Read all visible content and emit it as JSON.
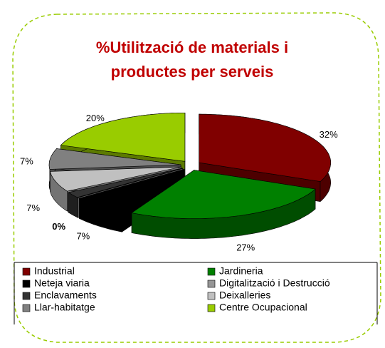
{
  "chart_data": {
    "type": "pie3d",
    "title": [
      "%Utilització de materials i",
      "productes per serveis"
    ],
    "categories": [
      "Industrial",
      "Jardineria",
      "Neteja viaria",
      "Digitalització i Destrucció",
      "Enclavaments",
      "Deixalleries",
      "Llar-habitatge",
      "Centre Ocupacional"
    ],
    "values": [
      32,
      27,
      7,
      0,
      2,
      7,
      7,
      20
    ],
    "value_labels": [
      "32%",
      "27%",
      "7%",
      "0%",
      null,
      "7%",
      "7%",
      "20%"
    ],
    "colors": [
      "#800000",
      "#008000",
      "#000000",
      "#969696",
      "#333333",
      "#c0c0c0",
      "#808080",
      "#99cc00"
    ],
    "legend": "bottom"
  }
}
